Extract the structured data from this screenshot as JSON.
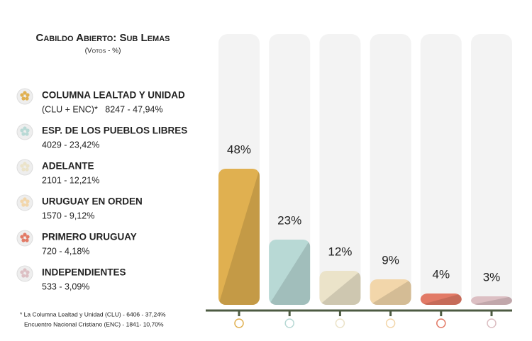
{
  "chart_data": {
    "type": "bar",
    "title": "Cabildo Abierto: Sub Lemas",
    "subtitle": "(Votos - %)",
    "categories": [
      "COLUMNA LEALTAD Y UNIDAD",
      "ESP. DE LOS PUEBLOS LIBRES",
      "ADELANTE",
      "URUGUAY EN ORDEN",
      "PRIMERO URUGUAY",
      "INDEPENDIENTES"
    ],
    "details": [
      "(CLU + ENC)*   8247 - 47,94%",
      "4029 - 23,42%",
      "2101 - 12,21%",
      "1570 - 9,12%",
      "720 - 4,18%",
      "533 - 3,09%"
    ],
    "values": [
      48,
      23,
      12,
      9,
      4,
      3
    ],
    "value_labels": [
      "48%",
      "23%",
      "12%",
      "9%",
      "4%",
      "3%"
    ],
    "colors": [
      "#e0b050",
      "#b8d9d5",
      "#ebe3c9",
      "#f2d6aa",
      "#e27a66",
      "#dcbfc3"
    ],
    "ylim": [
      0,
      100
    ],
    "footnote": [
      "* La Columna Lealtad y Unidad (CLU) - 6406 - 37,24%",
      "Encuentro Nacional Cristiano (ENC) - 1841- 10,70%"
    ]
  }
}
